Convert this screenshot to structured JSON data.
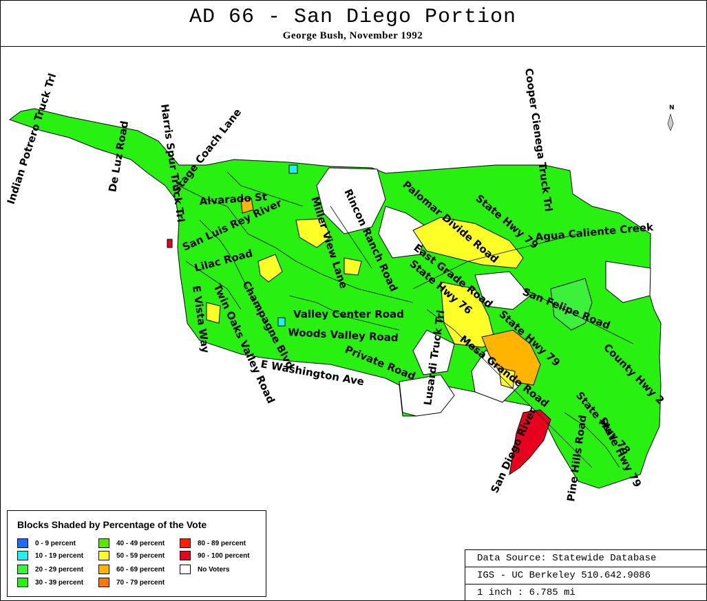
{
  "header": {
    "title": "AD 66 - San Diego Portion",
    "subtitle": "George Bush, November 1992"
  },
  "map": {
    "north_label": "N",
    "colors": {
      "c_0_9": "#1e6cff",
      "c_10_19": "#22f0f0",
      "c_20_29": "#3cf03c",
      "c_30_39": "#28f010",
      "c_40_49": "#5ae600",
      "c_50_59": "#ffff28",
      "c_60_69": "#ffb400",
      "c_70_79": "#ff7800",
      "c_80_89": "#ff1e00",
      "c_90_100": "#e6001e",
      "no_voters": "#ffffff"
    },
    "roads": [
      {
        "id": "indian-potrero",
        "text": "Indian Potrero Truck Trl"
      },
      {
        "id": "de-luz",
        "text": "De Luz Road"
      },
      {
        "id": "harris-spur",
        "text": "Harris Spur Truck Trl"
      },
      {
        "id": "stage-coach",
        "text": "Stage Coach Lane"
      },
      {
        "id": "alvarado",
        "text": "Alvarado St"
      },
      {
        "id": "san-luis-rey",
        "text": "San Luis Rey River"
      },
      {
        "id": "miller-view",
        "text": "Miller View Lane"
      },
      {
        "id": "rincon-ranch",
        "text": "Rincon Ranch Road"
      },
      {
        "id": "palomar-divide",
        "text": "Palomar Divide Road"
      },
      {
        "id": "state-hwy-79-a",
        "text": "State Hwy 79"
      },
      {
        "id": "cooper-cienega",
        "text": "Cooper Cienega Truck Trl"
      },
      {
        "id": "agua-caliente",
        "text": "Agua Caliente Creek"
      },
      {
        "id": "east-grade",
        "text": "East Grade Road"
      },
      {
        "id": "state-hwy-76",
        "text": "State Hwy 76"
      },
      {
        "id": "san-felipe",
        "text": "San Felipe Road"
      },
      {
        "id": "lilac",
        "text": "Lilac Road"
      },
      {
        "id": "e-vista",
        "text": "E Vista Way"
      },
      {
        "id": "twin-oaks",
        "text": "Twin Oaks Valley Road"
      },
      {
        "id": "champagne",
        "text": "Champagne Blvd"
      },
      {
        "id": "valley-center",
        "text": "Valley Center Road"
      },
      {
        "id": "woods-valley",
        "text": "Woods Valley Road"
      },
      {
        "id": "private-road",
        "text": "Private Road"
      },
      {
        "id": "e-washington",
        "text": "E Washington Ave"
      },
      {
        "id": "lusardi",
        "text": "Lusardi Truck Trl"
      },
      {
        "id": "state-hwy-79-b",
        "text": "State Hwy 79"
      },
      {
        "id": "mesa-grande",
        "text": "Mesa Grande Road"
      },
      {
        "id": "county-hwy-2",
        "text": "County Hwy 2"
      },
      {
        "id": "state-hwy-78",
        "text": "State Hwy 78"
      },
      {
        "id": "san-diego-river",
        "text": "San Diego River"
      },
      {
        "id": "pine-hills",
        "text": "Pine Hills Road"
      },
      {
        "id": "state-hwy-79-c",
        "text": "State Hwy 79"
      }
    ]
  },
  "legend": {
    "title": "Blocks Shaded by Percentage of the Vote",
    "items": [
      {
        "label": "0 - 9 percent",
        "color": "#1e6cff"
      },
      {
        "label": "10 - 19 percent",
        "color": "#22f0f0"
      },
      {
        "label": "20 - 29 percent",
        "color": "#3cf03c"
      },
      {
        "label": "30 - 39 percent",
        "color": "#28f010"
      },
      {
        "label": "40 - 49 percent",
        "color": "#5ae600"
      },
      {
        "label": "50 - 59 percent",
        "color": "#ffff28"
      },
      {
        "label": "60 - 69 percent",
        "color": "#ffb400"
      },
      {
        "label": "70 - 79 percent",
        "color": "#ff7800"
      },
      {
        "label": "80 - 89 percent",
        "color": "#ff1e00"
      },
      {
        "label": "90 - 100 percent",
        "color": "#e6001e"
      },
      {
        "label": "No Voters",
        "color": "#ffffff"
      }
    ]
  },
  "info": {
    "source": "Data Source: Statewide Database",
    "org": "IGS - UC Berkeley 510.642.9086",
    "scale": "1 inch : 6.785 mi"
  }
}
